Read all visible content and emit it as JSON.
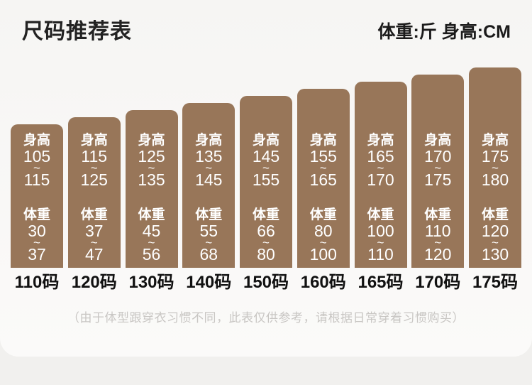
{
  "header": {
    "title": "尺码推荐表",
    "units": "体重:斤  身高:CM"
  },
  "chart_data": {
    "type": "bar",
    "title": "尺码推荐表",
    "unit_note": "体重:斤 身高:CM",
    "categories": [
      "110码",
      "120码",
      "130码",
      "140码",
      "150码",
      "160码",
      "165码",
      "170码",
      "175码"
    ],
    "series": [
      {
        "name": "身高",
        "ranges": [
          [
            105,
            115
          ],
          [
            115,
            125
          ],
          [
            125,
            135
          ],
          [
            135,
            145
          ],
          [
            145,
            155
          ],
          [
            155,
            165
          ],
          [
            165,
            170
          ],
          [
            170,
            175
          ],
          [
            175,
            180
          ]
        ]
      },
      {
        "name": "体重",
        "ranges": [
          [
            30,
            37
          ],
          [
            37,
            47
          ],
          [
            45,
            56
          ],
          [
            55,
            68
          ],
          [
            66,
            80
          ],
          [
            80,
            100
          ],
          [
            100,
            110
          ],
          [
            110,
            120
          ],
          [
            120,
            130
          ]
        ]
      }
    ],
    "legend_position": "none",
    "grid": false
  },
  "tilde": "~",
  "bars": [
    {
      "size": "110码",
      "height_label": "身高",
      "height_min": "105",
      "height_max": "115",
      "weight_label": "体重",
      "weight_min": "30",
      "weight_max": "37"
    },
    {
      "size": "120码",
      "height_label": "身高",
      "height_min": "115",
      "height_max": "125",
      "weight_label": "体重",
      "weight_min": "37",
      "weight_max": "47"
    },
    {
      "size": "130码",
      "height_label": "身高",
      "height_min": "125",
      "height_max": "135",
      "weight_label": "体重",
      "weight_min": "45",
      "weight_max": "56"
    },
    {
      "size": "140码",
      "height_label": "身高",
      "height_min": "135",
      "height_max": "145",
      "weight_label": "体重",
      "weight_min": "55",
      "weight_max": "68"
    },
    {
      "size": "150码",
      "height_label": "身高",
      "height_min": "145",
      "height_max": "155",
      "weight_label": "体重",
      "weight_min": "66",
      "weight_max": "80"
    },
    {
      "size": "160码",
      "height_label": "身高",
      "height_min": "155",
      "height_max": "165",
      "weight_label": "体重",
      "weight_min": "80",
      "weight_max": "100"
    },
    {
      "size": "165码",
      "height_label": "身高",
      "height_min": "165",
      "height_max": "170",
      "weight_label": "体重",
      "weight_min": "100",
      "weight_max": "110"
    },
    {
      "size": "170码",
      "height_label": "身高",
      "height_min": "170",
      "height_max": "175",
      "weight_label": "体重",
      "weight_min": "110",
      "weight_max": "120"
    },
    {
      "size": "175码",
      "height_label": "身高",
      "height_min": "175",
      "height_max": "180",
      "weight_label": "体重",
      "weight_min": "120",
      "weight_max": "130"
    }
  ],
  "footer": {
    "note": "（由于体型跟穿衣习惯不同，此表仅供参考，请根据日常穿着习惯购买）"
  },
  "colors": {
    "bar": "#987659",
    "bar_text": "#ffffff",
    "page_bg": "#f1f0ee",
    "title": "#222222",
    "size_label": "#111111",
    "note": "#c8c6c3"
  }
}
